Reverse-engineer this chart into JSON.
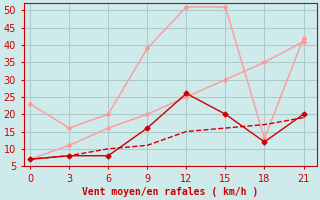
{
  "xlabel": "Vent moyen/en rafales ( km/h )",
  "ylim": [
    5,
    52
  ],
  "xlim": [
    -0.5,
    22
  ],
  "xticks": [
    0,
    3,
    6,
    9,
    12,
    15,
    18,
    21
  ],
  "yticks": [
    5,
    10,
    15,
    20,
    25,
    30,
    35,
    40,
    45,
    50
  ],
  "bg_color": "#ceeaea",
  "line1_x": [
    0,
    3,
    6,
    9,
    12,
    15,
    18,
    21
  ],
  "line1_y": [
    23,
    16,
    20,
    39,
    51,
    51,
    13,
    42
  ],
  "line1_color": "#ff9999",
  "line1_lw": 1.0,
  "line2_x": [
    0,
    3,
    6,
    9,
    12,
    15,
    18,
    21
  ],
  "line2_y": [
    7,
    11,
    16,
    20,
    25,
    30,
    35,
    41
  ],
  "line2_color": "#ff9999",
  "line2_lw": 1.0,
  "line3_x": [
    0,
    3,
    6,
    9,
    12,
    15,
    18,
    21
  ],
  "line3_y": [
    7,
    8,
    8,
    16,
    26,
    20,
    12,
    20
  ],
  "line3_color": "#cc0000",
  "line3_lw": 1.0,
  "line4_x": [
    0,
    3,
    6,
    9,
    12,
    15,
    18,
    21
  ],
  "line4_y": [
    7,
    8,
    10,
    11,
    15,
    16,
    17,
    19
  ],
  "line4_color": "#cc0000",
  "line4_lw": 1.0,
  "marker_color": "#cc0000",
  "marker_color_pink": "#ff9999",
  "grid_color": "#aacaca",
  "tick_color": "#cc0000",
  "label_color": "#cc0000",
  "label_fontsize": 7.0
}
